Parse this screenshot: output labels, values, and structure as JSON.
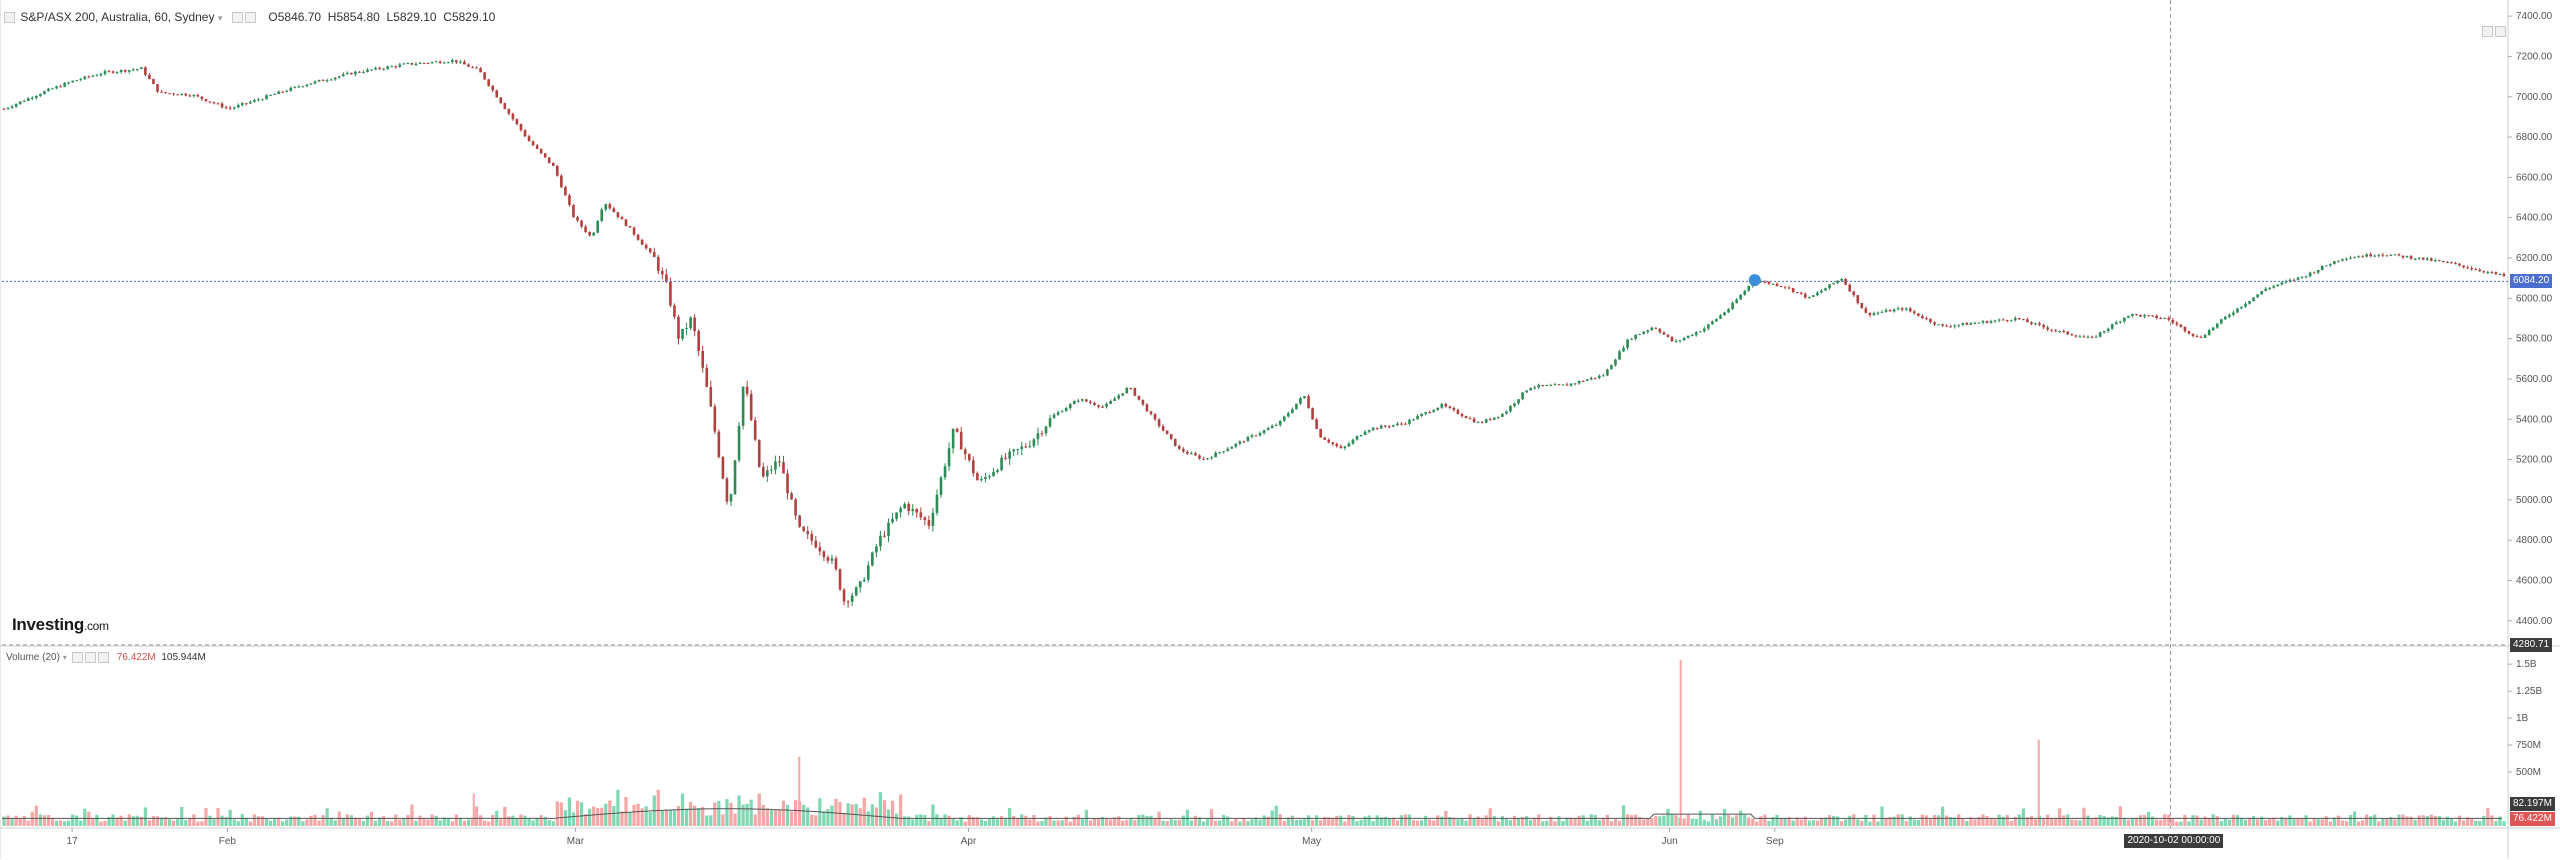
{
  "header": {
    "symbol": "S&P/ASX 200, Australia, 60, Sydney",
    "open_label": "O",
    "open": "5846.70",
    "high_label": "H",
    "high": "5854.80",
    "low_label": "L",
    "low": "5829.10",
    "close_label": "C",
    "close": "5829.10"
  },
  "volume_header": {
    "title": "Volume (20)",
    "value1": "76.422M",
    "value2": "105.944M"
  },
  "logo": {
    "main": "Investing",
    "suffix": ".com"
  },
  "last_price_tag": "6084.20",
  "crosshair_price_tag": "4280.71",
  "volume_tag_1": "82.197M",
  "volume_tag_2": "76.422M",
  "crosshair_time_tag": "2020-10-02 00:00:00",
  "colors": {
    "up": "#2e8b57",
    "down": "#b0413e",
    "vol_up": "#7fd8b2",
    "vol_down": "#f5a6a6",
    "ma": "#555555",
    "price_line": "#4a6fd0",
    "tag_bg": "#3c3c3c",
    "tag_blue": "#4a6fd0",
    "tag_red": "#e05555",
    "marker": "#3b8fd9"
  },
  "chart_data": {
    "type": "candlestick",
    "price_axis": {
      "ylim": [
        4280,
        7480
      ],
      "ticks": [
        "7400.00",
        "7200.00",
        "7000.00",
        "6800.00",
        "6600.00",
        "6400.00",
        "6200.00",
        "6000.00",
        "5800.00",
        "5600.00",
        "5400.00",
        "5200.00",
        "5000.00",
        "4800.00",
        "4600.00",
        "4400.00"
      ],
      "tick_values": [
        7400,
        7200,
        7000,
        6800,
        6600,
        6400,
        6200,
        6000,
        5800,
        5600,
        5400,
        5200,
        5000,
        4800,
        4600,
        4400
      ]
    },
    "volume_axis": {
      "ylim": [
        0,
        1650000000
      ],
      "ticks": [
        "1.5B",
        "1.25B",
        "1B",
        "750M",
        "500M"
      ],
      "tick_values": [
        1500000000,
        1250000000,
        1000000000,
        750000000,
        500000000
      ]
    },
    "time_axis": {
      "labels": [
        "17",
        "Feb",
        "Mar",
        "Apr",
        "May",
        "Jun",
        "Sep"
      ],
      "label_fraction": [
        0.028,
        0.09,
        0.229,
        0.386,
        0.523,
        0.666,
        0.708
      ]
    },
    "last_price": 6084.2,
    "crosshair_price": 4280.71,
    "crosshair_time_fraction": 0.866,
    "price_path": [
      {
        "t": 0.0,
        "v": 6940
      },
      {
        "t": 0.015,
        "v": 7020
      },
      {
        "t": 0.028,
        "v": 7080
      },
      {
        "t": 0.04,
        "v": 7120
      },
      {
        "t": 0.055,
        "v": 7140
      },
      {
        "t": 0.062,
        "v": 7020
      },
      {
        "t": 0.075,
        "v": 7010
      },
      {
        "t": 0.09,
        "v": 6940
      },
      {
        "t": 0.105,
        "v": 7000
      },
      {
        "t": 0.12,
        "v": 7060
      },
      {
        "t": 0.14,
        "v": 7120
      },
      {
        "t": 0.16,
        "v": 7160
      },
      {
        "t": 0.18,
        "v": 7180
      },
      {
        "t": 0.19,
        "v": 7130
      },
      {
        "t": 0.2,
        "v": 6950
      },
      {
        "t": 0.21,
        "v": 6780
      },
      {
        "t": 0.22,
        "v": 6650
      },
      {
        "t": 0.228,
        "v": 6400
      },
      {
        "t": 0.235,
        "v": 6300
      },
      {
        "t": 0.24,
        "v": 6480
      },
      {
        "t": 0.25,
        "v": 6350
      },
      {
        "t": 0.26,
        "v": 6200
      },
      {
        "t": 0.265,
        "v": 6060
      },
      {
        "t": 0.27,
        "v": 5800
      },
      {
        "t": 0.275,
        "v": 5900
      },
      {
        "t": 0.282,
        "v": 5500
      },
      {
        "t": 0.29,
        "v": 4950
      },
      {
        "t": 0.296,
        "v": 5600
      },
      {
        "t": 0.303,
        "v": 5100
      },
      {
        "t": 0.31,
        "v": 5200
      },
      {
        "t": 0.318,
        "v": 4850
      },
      {
        "t": 0.325,
        "v": 4780
      },
      {
        "t": 0.332,
        "v": 4680
      },
      {
        "t": 0.336,
        "v": 4500
      },
      {
        "t": 0.342,
        "v": 4560
      },
      {
        "t": 0.35,
        "v": 4800
      },
      {
        "t": 0.36,
        "v": 4980
      },
      {
        "t": 0.37,
        "v": 4880
      },
      {
        "t": 0.38,
        "v": 5350
      },
      {
        "t": 0.39,
        "v": 5080
      },
      {
        "t": 0.4,
        "v": 5200
      },
      {
        "t": 0.41,
        "v": 5280
      },
      {
        "t": 0.42,
        "v": 5420
      },
      {
        "t": 0.43,
        "v": 5500
      },
      {
        "t": 0.44,
        "v": 5460
      },
      {
        "t": 0.45,
        "v": 5560
      },
      {
        "t": 0.46,
        "v": 5400
      },
      {
        "t": 0.47,
        "v": 5250
      },
      {
        "t": 0.48,
        "v": 5200
      },
      {
        "t": 0.495,
        "v": 5290
      },
      {
        "t": 0.51,
        "v": 5380
      },
      {
        "t": 0.52,
        "v": 5520
      },
      {
        "t": 0.526,
        "v": 5320
      },
      {
        "t": 0.535,
        "v": 5250
      },
      {
        "t": 0.545,
        "v": 5350
      },
      {
        "t": 0.56,
        "v": 5380
      },
      {
        "t": 0.575,
        "v": 5470
      },
      {
        "t": 0.59,
        "v": 5380
      },
      {
        "t": 0.6,
        "v": 5430
      },
      {
        "t": 0.61,
        "v": 5560
      },
      {
        "t": 0.625,
        "v": 5570
      },
      {
        "t": 0.64,
        "v": 5620
      },
      {
        "t": 0.65,
        "v": 5800
      },
      {
        "t": 0.66,
        "v": 5860
      },
      {
        "t": 0.668,
        "v": 5780
      },
      {
        "t": 0.68,
        "v": 5850
      },
      {
        "t": 0.69,
        "v": 5950
      },
      {
        "t": 0.7,
        "v": 6090
      },
      {
        "t": 0.712,
        "v": 6060
      },
      {
        "t": 0.722,
        "v": 6000
      },
      {
        "t": 0.735,
        "v": 6100
      },
      {
        "t": 0.745,
        "v": 5920
      },
      {
        "t": 0.76,
        "v": 5950
      },
      {
        "t": 0.775,
        "v": 5860
      },
      {
        "t": 0.79,
        "v": 5880
      },
      {
        "t": 0.805,
        "v": 5900
      },
      {
        "t": 0.82,
        "v": 5840
      },
      {
        "t": 0.835,
        "v": 5800
      },
      {
        "t": 0.85,
        "v": 5920
      },
      {
        "t": 0.865,
        "v": 5900
      },
      {
        "t": 0.878,
        "v": 5800
      },
      {
        "t": 0.89,
        "v": 5920
      },
      {
        "t": 0.905,
        "v": 6050
      },
      {
        "t": 0.92,
        "v": 6110
      },
      {
        "t": 0.935,
        "v": 6200
      },
      {
        "t": 0.95,
        "v": 6220
      },
      {
        "t": 0.965,
        "v": 6200
      },
      {
        "t": 0.98,
        "v": 6170
      },
      {
        "t": 1.0,
        "v": 6110
      }
    ],
    "volume_spikes": [
      {
        "t": 0.67,
        "v": 1540000000
      },
      {
        "t": 0.813,
        "v": 800000000
      },
      {
        "t": 0.318,
        "v": 640000000
      },
      {
        "t": 0.188,
        "v": 300000000
      }
    ]
  }
}
